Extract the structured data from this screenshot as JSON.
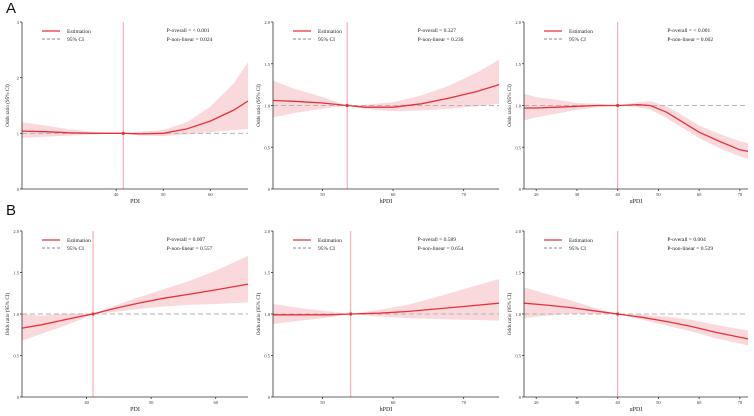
{
  "rows": [
    {
      "label": "A"
    },
    {
      "label": "B"
    }
  ],
  "colors": {
    "curve": "#e8303a",
    "band": "#f9d2d6",
    "ref_line": "#f5a0aa",
    "dashed": "#b5b5b5",
    "axis": "#333333"
  },
  "chart_data": [
    {
      "id": "A1",
      "type": "line",
      "xlabel": "PDI",
      "ylabel": "Odds ratio (95% CI)",
      "xlim": [
        20,
        68
      ],
      "ylim": [
        0,
        3
      ],
      "yticks": [
        "0",
        "1",
        "2",
        "3"
      ],
      "xticks": [
        40,
        50,
        60
      ],
      "ref_x": 41.5,
      "legend": [
        "Estimation",
        "95% CI"
      ],
      "p_overall": "P-overall = < 0.001",
      "p_nonlinear": "P-non-linear = 0.024",
      "x": [
        20,
        25,
        30,
        35,
        41.5,
        45,
        50,
        55,
        60,
        65,
        68
      ],
      "y": [
        1.04,
        1.03,
        1.01,
        1.0,
        1.0,
        0.99,
        1.0,
        1.08,
        1.22,
        1.42,
        1.58
      ],
      "lower": [
        0.92,
        0.94,
        0.96,
        0.98,
        1.0,
        0.96,
        0.95,
        0.98,
        1.02,
        1.06,
        1.08
      ],
      "upper": [
        1.2,
        1.14,
        1.07,
        1.03,
        1.0,
        1.03,
        1.06,
        1.2,
        1.48,
        1.9,
        2.28
      ]
    },
    {
      "id": "A2",
      "type": "line",
      "xlabel": "hPDI",
      "ylabel": "Odds ratio (95% CI)",
      "xlim": [
        43,
        75
      ],
      "ylim": [
        0,
        2
      ],
      "yticks": [
        "0",
        "0.5",
        "1.0",
        "1.5",
        "2.0"
      ],
      "xticks": [
        50,
        60,
        70
      ],
      "ref_x": 53.5,
      "legend": [
        "Estimation",
        "95% CI"
      ],
      "p_overall": "P-overall = 0.327",
      "p_nonlinear": "P-non-linear = 0.236",
      "x": [
        43,
        46,
        50,
        53.5,
        56,
        60,
        64,
        68,
        72,
        75
      ],
      "y": [
        1.06,
        1.05,
        1.03,
        1.0,
        0.98,
        0.98,
        1.02,
        1.09,
        1.17,
        1.25
      ],
      "lower": [
        0.86,
        0.91,
        0.96,
        1.0,
        0.96,
        0.93,
        0.94,
        0.96,
        0.99,
        1.02
      ],
      "upper": [
        1.3,
        1.2,
        1.1,
        1.0,
        1.01,
        1.04,
        1.12,
        1.24,
        1.4,
        1.55
      ]
    },
    {
      "id": "A3",
      "type": "line",
      "xlabel": "uPDI",
      "ylabel": "Odds ratio (95% CI)",
      "xlim": [
        17,
        72
      ],
      "ylim": [
        0,
        2
      ],
      "yticks": [
        "0",
        "0.5",
        "1.0",
        "1.5",
        "2.0"
      ],
      "xticks": [
        20,
        30,
        40,
        50,
        60,
        70
      ],
      "ref_x": 40,
      "legend": [
        "Estimation",
        "95% CI"
      ],
      "p_overall": "P-overall = < 0.001",
      "p_nonlinear": "P-non-linear = 0.002",
      "x": [
        17,
        20,
        25,
        30,
        35,
        40,
        45,
        48,
        52,
        56,
        60,
        65,
        70,
        72
      ],
      "y": [
        0.97,
        0.97,
        0.98,
        0.99,
        1.0,
        1.0,
        1.01,
        1.0,
        0.92,
        0.8,
        0.68,
        0.57,
        0.47,
        0.45
      ],
      "lower": [
        0.82,
        0.86,
        0.9,
        0.95,
        0.98,
        1.0,
        0.98,
        0.95,
        0.85,
        0.73,
        0.61,
        0.49,
        0.39,
        0.36
      ],
      "upper": [
        1.14,
        1.1,
        1.07,
        1.03,
        1.02,
        1.0,
        1.04,
        1.05,
        0.99,
        0.88,
        0.76,
        0.66,
        0.57,
        0.55
      ]
    },
    {
      "id": "B1",
      "type": "line",
      "xlabel": "PDI",
      "ylabel": "Odds ratio (95% CI)",
      "xlim": [
        30,
        65
      ],
      "ylim": [
        0,
        2
      ],
      "yticks": [
        "0",
        "0.5",
        "1.0",
        "1.5",
        "2.0"
      ],
      "xticks": [
        40,
        50,
        60
      ],
      "ref_x": 41,
      "legend": [
        "Estimation",
        "95% CI"
      ],
      "p_overall": "P-overall = 0.007",
      "p_nonlinear": "P-non-linear = 0.557",
      "x": [
        30,
        33,
        36,
        39,
        41,
        44,
        48,
        52,
        56,
        60,
        65
      ],
      "y": [
        0.83,
        0.87,
        0.92,
        0.97,
        1.0,
        1.06,
        1.13,
        1.19,
        1.24,
        1.29,
        1.36
      ],
      "lower": [
        0.68,
        0.76,
        0.84,
        0.93,
        1.0,
        1.02,
        1.06,
        1.09,
        1.11,
        1.12,
        1.14
      ],
      "upper": [
        1.0,
        0.98,
        1.0,
        1.01,
        1.0,
        1.09,
        1.2,
        1.3,
        1.4,
        1.52,
        1.7
      ]
    },
    {
      "id": "B2",
      "type": "line",
      "xlabel": "hPDI",
      "ylabel": "Odds ratio (95% CI)",
      "xlim": [
        43,
        75
      ],
      "ylim": [
        0,
        2
      ],
      "yticks": [
        "0",
        "0.5",
        "1.0",
        "1.5",
        "2.0"
      ],
      "xticks": [
        50,
        60,
        70
      ],
      "ref_x": 54,
      "legend": [
        "Estimation",
        "95% CI"
      ],
      "p_overall": "P-overall = 0.589",
      "p_nonlinear": "P-non-linear = 0.654",
      "x": [
        43,
        47,
        51,
        54,
        58,
        62,
        66,
        70,
        75
      ],
      "y": [
        0.99,
        0.99,
        0.99,
        1.0,
        1.01,
        1.03,
        1.06,
        1.09,
        1.13
      ],
      "lower": [
        0.88,
        0.92,
        0.96,
        1.0,
        0.97,
        0.95,
        0.94,
        0.93,
        0.92
      ],
      "upper": [
        1.12,
        1.07,
        1.03,
        1.0,
        1.05,
        1.11,
        1.2,
        1.3,
        1.42
      ]
    },
    {
      "id": "B3",
      "type": "line",
      "xlabel": "uPDI",
      "ylabel": "Odds ratio (95% CI)",
      "xlim": [
        17,
        72
      ],
      "ylim": [
        0,
        2
      ],
      "yticks": [
        "0",
        "0.5",
        "1.0",
        "1.5",
        "2.0"
      ],
      "xticks": [
        20,
        30,
        40,
        50,
        60,
        70
      ],
      "ref_x": 40,
      "legend": [
        "Estimation",
        "95% CI"
      ],
      "p_overall": "P-overall = 0.004",
      "p_nonlinear": "P-non-linear = 0.529",
      "x": [
        17,
        22,
        28,
        34,
        40,
        46,
        52,
        58,
        64,
        72
      ],
      "y": [
        1.13,
        1.11,
        1.08,
        1.04,
        1.0,
        0.96,
        0.91,
        0.85,
        0.78,
        0.7
      ],
      "lower": [
        0.95,
        0.98,
        1.0,
        1.0,
        1.0,
        0.93,
        0.86,
        0.79,
        0.71,
        0.62
      ],
      "upper": [
        1.32,
        1.25,
        1.17,
        1.08,
        1.0,
        0.99,
        0.97,
        0.93,
        0.87,
        0.8
      ]
    }
  ]
}
